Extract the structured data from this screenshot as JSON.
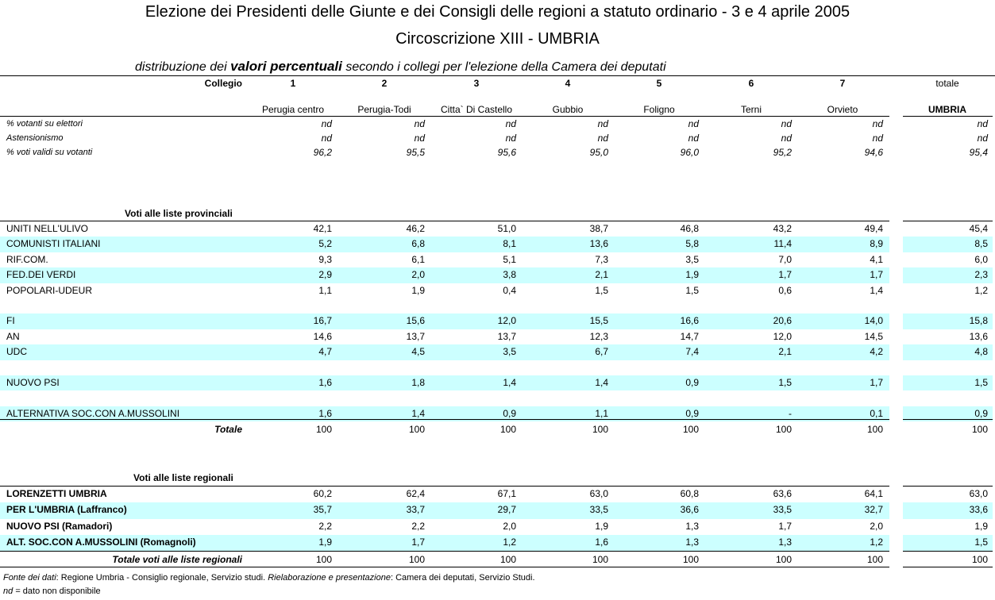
{
  "header": {
    "title": "Elezione dei Presidenti delle Giunte e dei Consigli delle regioni a statuto ordinario - 3 e 4 aprile 2005",
    "subtitle": "Circoscrizione XIII - UMBRIA",
    "description_start": "distribuzione dei",
    "description_emphasis": "valori percentuali",
    "description_end": "secondo i collegi per l'elezione della Camera dei deputati"
  },
  "columns": {
    "label": "Collegio",
    "numbers": [
      "1",
      "2",
      "3",
      "4",
      "5",
      "6",
      "7"
    ],
    "total_label": "totale",
    "names": [
      "Perugia centro",
      "Perugia-Todi",
      "Citta` Di Castello",
      "Gubbio",
      "Foligno",
      "Terni",
      "Orvieto"
    ],
    "total_name": "UMBRIA"
  },
  "stats": [
    {
      "label": "% votanti su elettori",
      "values": [
        "nd",
        "nd",
        "nd",
        "nd",
        "nd",
        "nd",
        "nd"
      ],
      "total": "nd"
    },
    {
      "label": "Astensionismo",
      "values": [
        "nd",
        "nd",
        "nd",
        "nd",
        "nd",
        "nd",
        "nd"
      ],
      "total": "nd"
    },
    {
      "label": "% voti validi su votanti",
      "values": [
        "96,2",
        "95,5",
        "95,6",
        "95,0",
        "96,0",
        "95,2",
        "94,6"
      ],
      "total": "95,4"
    }
  ],
  "provincial": {
    "heading": "Voti alle liste provinciali",
    "rows": [
      {
        "label": "UNITI NELL'ULIVO",
        "values": [
          "42,1",
          "46,2",
          "51,0",
          "38,7",
          "46,8",
          "43,2",
          "49,4"
        ],
        "total": "45,4"
      },
      {
        "label": "COMUNISTI ITALIANI",
        "values": [
          "5,2",
          "6,8",
          "8,1",
          "13,6",
          "5,8",
          "11,4",
          "8,9"
        ],
        "total": "8,5"
      },
      {
        "label": "RIF.COM.",
        "values": [
          "9,3",
          "6,1",
          "5,1",
          "7,3",
          "3,5",
          "7,0",
          "4,1"
        ],
        "total": "6,0"
      },
      {
        "label": "FED.DEI VERDI",
        "values": [
          "2,9",
          "2,0",
          "3,8",
          "2,1",
          "1,9",
          "1,7",
          "1,7"
        ],
        "total": "2,3"
      },
      {
        "label": "POPOLARI-UDEUR",
        "values": [
          "1,1",
          "1,9",
          "0,4",
          "1,5",
          "1,5",
          "0,6",
          "1,4"
        ],
        "total": "1,2"
      },
      {
        "label": "FI",
        "values": [
          "16,7",
          "15,6",
          "12,0",
          "15,5",
          "16,6",
          "20,6",
          "14,0"
        ],
        "total": "15,8"
      },
      {
        "label": "AN",
        "values": [
          "14,6",
          "13,7",
          "13,7",
          "12,3",
          "14,7",
          "12,0",
          "14,5"
        ],
        "total": "13,6"
      },
      {
        "label": "UDC",
        "values": [
          "4,7",
          "4,5",
          "3,5",
          "6,7",
          "7,4",
          "2,1",
          "4,2"
        ],
        "total": "4,8"
      },
      {
        "label": "NUOVO PSI",
        "values": [
          "1,6",
          "1,8",
          "1,4",
          "1,4",
          "0,9",
          "1,5",
          "1,7"
        ],
        "total": "1,5"
      },
      {
        "label": "ALTERNATIVA SOC.CON A.MUSSOLINI",
        "values": [
          "1,6",
          "1,4",
          "0,9",
          "1,1",
          "0,9",
          "-",
          "0,1"
        ],
        "total": "0,9"
      }
    ],
    "total_row": {
      "label": "Totale",
      "values": [
        "100",
        "100",
        "100",
        "100",
        "100",
        "100",
        "100"
      ],
      "total": "100"
    }
  },
  "regional": {
    "heading": "Voti alle liste regionali",
    "rows": [
      {
        "label": "LORENZETTI UMBRIA",
        "values": [
          "60,2",
          "62,4",
          "67,1",
          "63,0",
          "60,8",
          "63,6",
          "64,1"
        ],
        "total": "63,0"
      },
      {
        "label": "PER L'UMBRIA (Laffranco)",
        "values": [
          "35,7",
          "33,7",
          "29,7",
          "33,5",
          "36,6",
          "33,5",
          "32,7"
        ],
        "total": "33,6"
      },
      {
        "label": "NUOVO PSI (Ramadori)",
        "values": [
          "2,2",
          "2,2",
          "2,0",
          "1,9",
          "1,3",
          "1,7",
          "2,0"
        ],
        "total": "1,9"
      },
      {
        "label": "ALT. SOC.CON A.MUSSOLINI (Romagnoli)",
        "values": [
          "1,9",
          "1,7",
          "1,2",
          "1,6",
          "1,3",
          "1,3",
          "1,2"
        ],
        "total": "1,5"
      }
    ],
    "total_row": {
      "label": "Totale voti alle liste regionali",
      "values": [
        "100",
        "100",
        "100",
        "100",
        "100",
        "100",
        "100"
      ],
      "total": "100"
    }
  },
  "footer": {
    "source_label": "Fonte dei dati",
    "source_text": ": Regione Umbria - Consiglio regionale, Servizio studi.",
    "elaboration_label": "Rielaborazione e presentazione",
    "elaboration_text": ": Camera dei deputati, Servizio Studi.",
    "note_term": "nd",
    "note_text": "= dato non disponibile"
  }
}
